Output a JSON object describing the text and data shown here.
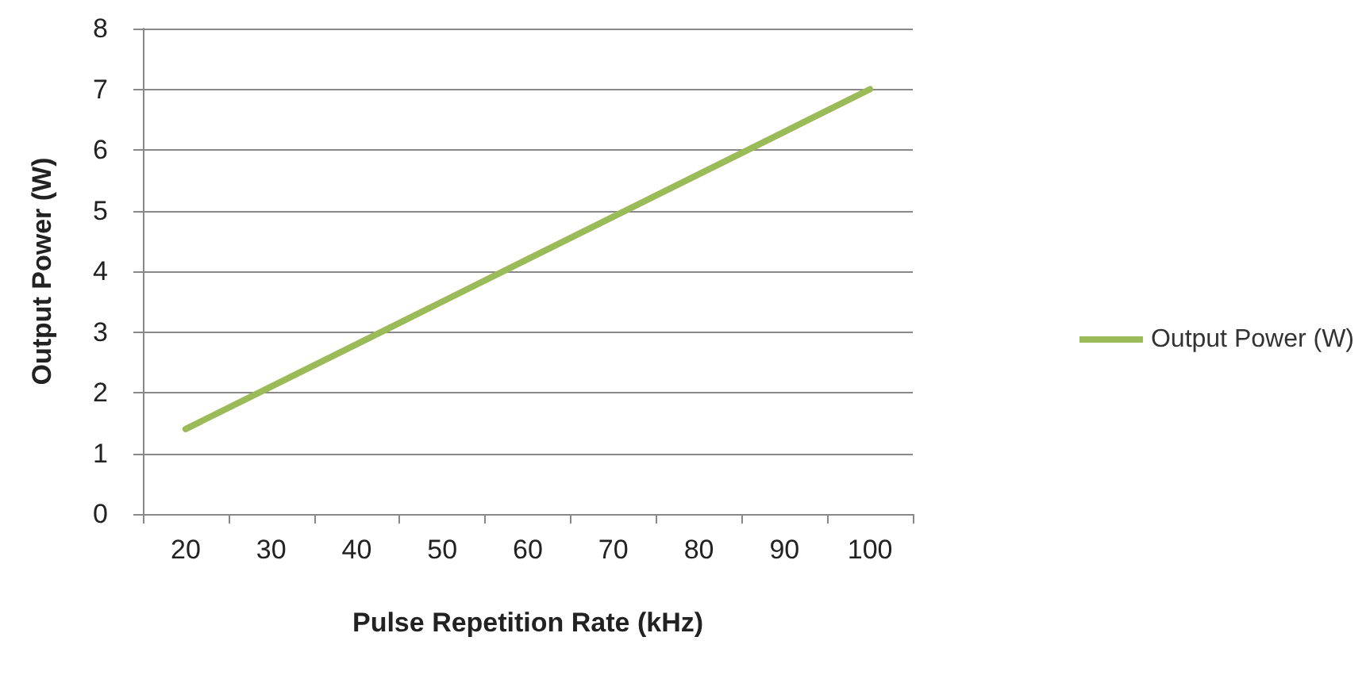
{
  "chart_data": {
    "type": "line",
    "xlabel": "Pulse Repetition Rate (kHz)",
    "ylabel": "Output Power (W)",
    "categories": [
      "20",
      "30",
      "40",
      "50",
      "60",
      "70",
      "80",
      "90",
      "100"
    ],
    "series": [
      {
        "name": "Output Power (W)",
        "color": "#9bbb59",
        "values": [
          1.4,
          2.1,
          2.8,
          3.5,
          4.2,
          4.9,
          5.6,
          6.3,
          7.0
        ]
      }
    ],
    "ylim": [
      0,
      8
    ],
    "yticks": [
      0,
      1,
      2,
      3,
      4,
      5,
      6,
      7,
      8
    ],
    "grid": "y",
    "legend": "right",
    "marker": "none",
    "line_style": "solid"
  }
}
